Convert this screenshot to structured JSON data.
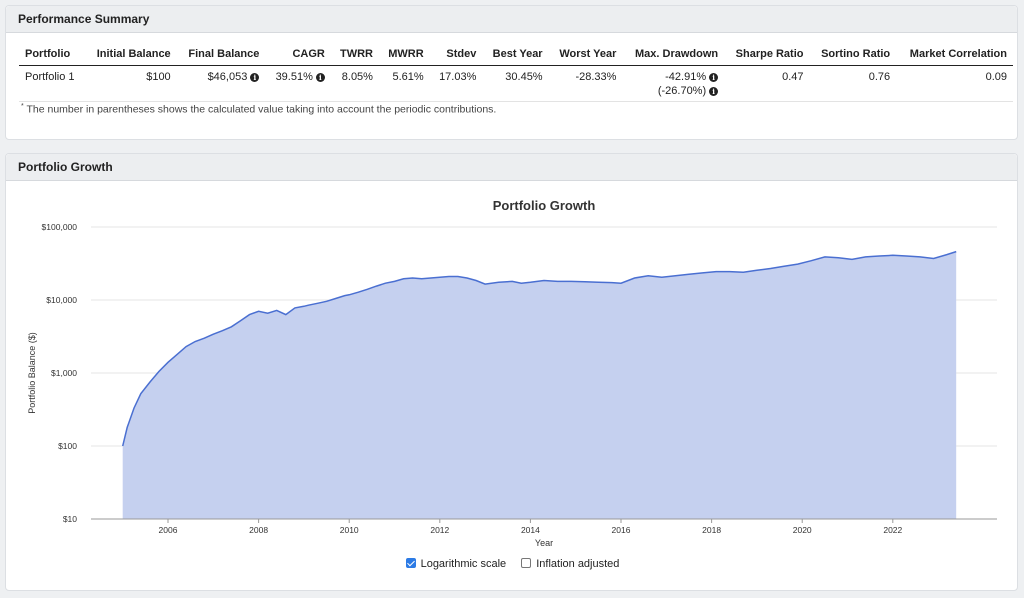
{
  "summary": {
    "title": "Performance Summary",
    "headers": [
      "Portfolio",
      "Initial Balance",
      "Final Balance",
      "CAGR",
      "TWRR",
      "MWRR",
      "Stdev",
      "Best Year",
      "Worst Year",
      "Max. Drawdown",
      "Sharpe Ratio",
      "Sortino Ratio",
      "Market Correlation"
    ],
    "row": {
      "portfolio": "Portfolio 1",
      "initial": "$100",
      "final": "$46,053",
      "cagr": "39.51%",
      "twrr": "8.05%",
      "mwrr": "5.61%",
      "stdev": "17.03%",
      "best": "30.45%",
      "worst": "-28.33%",
      "drawdown": "-42.91%",
      "drawdown_periodic": "(-26.70%)",
      "sharpe": "0.47",
      "sortino": "0.76",
      "correlation": "0.09"
    },
    "footnote_mark": "*",
    "footnote": "The number in parentheses shows the calculated value taking into account the periodic contributions."
  },
  "growth": {
    "title": "Portfolio Growth",
    "chart_title": "Portfolio Growth"
  },
  "chart_data": {
    "type": "area",
    "title": "Portfolio Growth",
    "xlabel": "Year",
    "ylabel": "Portfolio Balance ($)",
    "yscale": "log",
    "ylim": [
      10,
      100000
    ],
    "xlim": [
      2004.3,
      2024.3
    ],
    "yticks": [
      10,
      100,
      1000,
      10000,
      100000
    ],
    "ytick_labels": [
      "$10",
      "$100",
      "$1,000",
      "$10,000",
      "$100,000"
    ],
    "xticks": [
      2006,
      2008,
      2010,
      2012,
      2014,
      2016,
      2018,
      2020,
      2022
    ],
    "grid": true,
    "color": "#4a6fd1",
    "fill": "#c5d0ef",
    "series": [
      {
        "x": [
          2005.0,
          2005.1,
          2005.25,
          2005.4,
          2005.6,
          2005.8,
          2006.0,
          2006.2,
          2006.4,
          2006.6,
          2006.8,
          2007.0,
          2007.2,
          2007.4,
          2007.6,
          2007.8,
          2008.0,
          2008.2,
          2008.4,
          2008.6,
          2008.8,
          2009.0,
          2009.1,
          2009.3,
          2009.5,
          2009.7,
          2009.9,
          2010.0,
          2010.2,
          2010.4,
          2010.6,
          2010.8,
          2011.0,
          2011.2,
          2011.4,
          2011.6,
          2011.8,
          2012.0,
          2012.2,
          2012.4,
          2012.6,
          2012.8,
          2013.0,
          2013.3,
          2013.6,
          2013.8,
          2014.0,
          2014.3,
          2014.6,
          2014.9,
          2015.2,
          2015.5,
          2015.8,
          2016.0,
          2016.3,
          2016.6,
          2016.9,
          2017.2,
          2017.5,
          2017.8,
          2018.1,
          2018.4,
          2018.7,
          2019.0,
          2019.3,
          2019.6,
          2019.9,
          2020.2,
          2020.5,
          2020.8,
          2021.1,
          2021.4,
          2021.7,
          2022.0,
          2022.3,
          2022.6,
          2022.9,
          2023.2,
          2023.4
        ],
        "y": [
          100,
          180,
          330,
          520,
          750,
          1050,
          1400,
          1800,
          2300,
          2700,
          3000,
          3400,
          3800,
          4300,
          5200,
          6300,
          7000,
          6600,
          7200,
          6300,
          7800,
          8200,
          8500,
          9000,
          9600,
          10500,
          11500,
          11800,
          12800,
          14000,
          15500,
          17000,
          18000,
          19500,
          20000,
          19500,
          20000,
          20500,
          21000,
          21000,
          20000,
          18500,
          16500,
          17500,
          18000,
          17000,
          17500,
          18500,
          18000,
          18000,
          17800,
          17500,
          17300,
          17000,
          20000,
          21500,
          20500,
          21500,
          22500,
          23500,
          24500,
          24500,
          24000,
          25500,
          27000,
          29000,
          31000,
          34500,
          39000,
          38000,
          36000,
          39000,
          40000,
          41000,
          40000,
          39000,
          37000,
          42000,
          46053
        ]
      }
    ]
  },
  "legend": {
    "log_label": "Logarithmic scale",
    "log_checked": true,
    "infl_label": "Inflation adjusted",
    "infl_checked": false
  }
}
